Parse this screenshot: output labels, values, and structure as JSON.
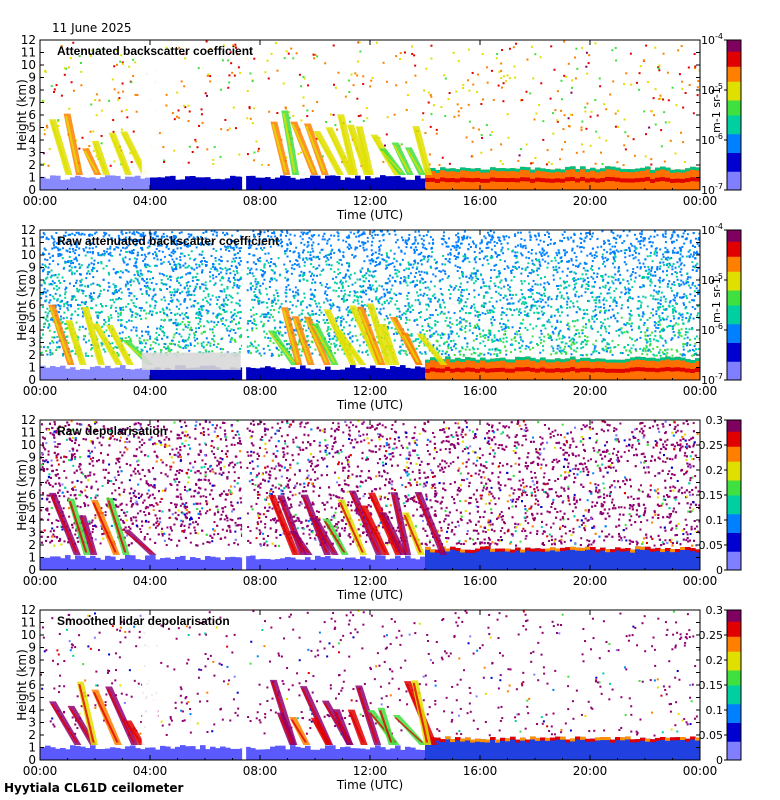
{
  "header": {
    "date": "11 June 2025"
  },
  "footer": {
    "site": "Hyytiala CL61D ceilometer"
  },
  "chart_data": [
    {
      "type": "heatmap",
      "title": "Attenuated backscatter coefficient",
      "xlabel": "Time (UTC)",
      "ylabel": "Height (km)",
      "x_ticks": [
        "00:00",
        "04:00",
        "08:00",
        "12:00",
        "16:00",
        "20:00",
        "00:00"
      ],
      "y_ticks": [
        0,
        1,
        2,
        3,
        4,
        5,
        6,
        7,
        8,
        9,
        10,
        11,
        12
      ],
      "ylim": [
        0,
        12
      ],
      "colorbar": {
        "scale": "log",
        "ticks": [
          "10-7",
          "10-6",
          "10-5",
          "10-4"
        ],
        "unit": "m-1 sr-1",
        "range": [
          1e-07,
          0.0001
        ]
      },
      "background": "white"
    },
    {
      "type": "heatmap",
      "title": "Raw attenuated backscatter coefficient",
      "xlabel": "Time (UTC)",
      "ylabel": "Height (km)",
      "x_ticks": [
        "00:00",
        "04:00",
        "08:00",
        "12:00",
        "16:00",
        "20:00",
        "00:00"
      ],
      "y_ticks": [
        0,
        1,
        2,
        3,
        4,
        5,
        6,
        7,
        8,
        9,
        10,
        11,
        12
      ],
      "ylim": [
        0,
        12
      ],
      "colorbar": {
        "scale": "log",
        "ticks": [
          "10-7",
          "10-6",
          "10-5",
          "10-4"
        ],
        "unit": "m-1 sr-1",
        "range": [
          1e-07,
          0.0001
        ]
      },
      "background": "noisy"
    },
    {
      "type": "heatmap",
      "title": "Raw depolarisation",
      "xlabel": "Time (UTC)",
      "ylabel": "Height (km)",
      "x_ticks": [
        "00:00",
        "04:00",
        "08:00",
        "12:00",
        "16:00",
        "20:00",
        "00:00"
      ],
      "y_ticks": [
        0,
        1,
        2,
        3,
        4,
        5,
        6,
        7,
        8,
        9,
        10,
        11,
        12
      ],
      "ylim": [
        0,
        12
      ],
      "colorbar": {
        "scale": "linear",
        "ticks": [
          "0",
          "0.05",
          "0.1",
          "0.15",
          "0.2",
          "0.25",
          "0.3"
        ],
        "range": [
          0,
          0.3
        ]
      },
      "background": "noise-depol"
    },
    {
      "type": "heatmap",
      "title": "Smoothed lidar depolarisation",
      "xlabel": "Time (UTC)",
      "ylabel": "Height (km)",
      "x_ticks": [
        "00:00",
        "04:00",
        "08:00",
        "12:00",
        "16:00",
        "20:00",
        "00:00"
      ],
      "y_ticks": [
        0,
        1,
        2,
        3,
        4,
        5,
        6,
        7,
        8,
        9,
        10,
        11,
        12
      ],
      "ylim": [
        0,
        12
      ],
      "colorbar": {
        "scale": "linear",
        "ticks": [
          "0",
          "0.05",
          "0.1",
          "0.15",
          "0.2",
          "0.25",
          "0.3"
        ],
        "range": [
          0,
          0.3
        ]
      },
      "background": "sparse-depol"
    }
  ]
}
